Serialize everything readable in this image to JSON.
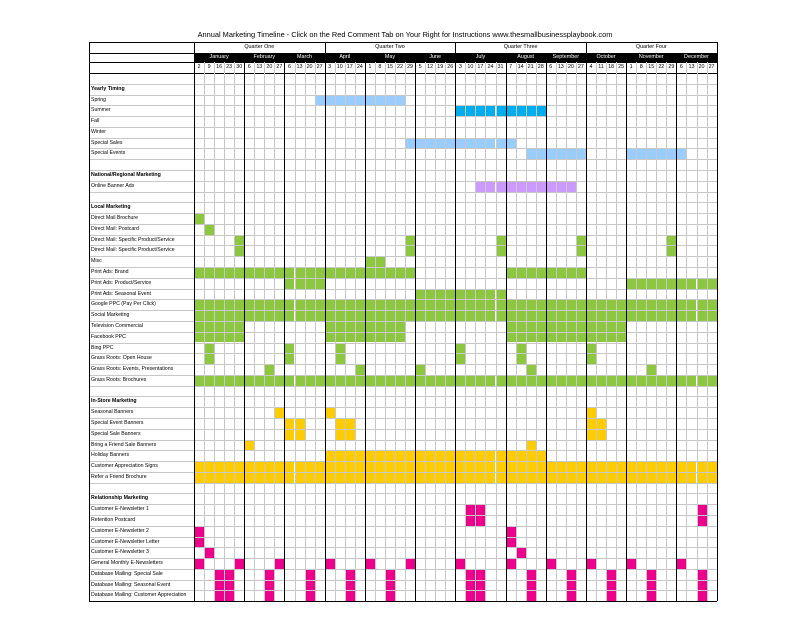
{
  "title": "Annual Marketing Timeline - Click on the Red Comment Tab on Your Right for Instructions      www.thesmallbusinessplaybook.com",
  "quarters": [
    "Quarter One",
    "Quarter Two",
    "Quarter Three",
    "Quarter Four"
  ],
  "months": [
    {
      "name": "January",
      "weeks": [
        "2",
        "9",
        "16",
        "23",
        "30"
      ]
    },
    {
      "name": "February",
      "weeks": [
        "6",
        "13",
        "20",
        "27"
      ]
    },
    {
      "name": "March",
      "weeks": [
        "6",
        "13",
        "20",
        "27"
      ]
    },
    {
      "name": "April",
      "weeks": [
        "3",
        "10",
        "17",
        "24"
      ]
    },
    {
      "name": "May",
      "weeks": [
        "1",
        "8",
        "15",
        "22",
        "29"
      ]
    },
    {
      "name": "June",
      "weeks": [
        "5",
        "12",
        "19",
        "26"
      ]
    },
    {
      "name": "July",
      "weeks": [
        "3",
        "10",
        "17",
        "24",
        "31"
      ]
    },
    {
      "name": "August",
      "weeks": [
        "7",
        "14",
        "21",
        "28"
      ]
    },
    {
      "name": "September",
      "weeks": [
        "6",
        "13",
        "20",
        "27"
      ]
    },
    {
      "name": "October",
      "weeks": [
        "4",
        "11",
        "18",
        "25"
      ]
    },
    {
      "name": "November",
      "weeks": [
        "1",
        "8",
        "15",
        "22",
        "29"
      ]
    },
    {
      "name": "December",
      "weeks": [
        "6",
        "13",
        "20",
        "27"
      ]
    }
  ],
  "colors": {
    "blue": "#99ccff",
    "cyan": "#00aeef",
    "purple": "#cc99ff",
    "green": "#8dc63f",
    "yellow": "#ffcc00",
    "pink": "#ec008c"
  },
  "rows": [
    {
      "label": "",
      "type": "blank"
    },
    {
      "label": "Yearly Timing",
      "type": "section"
    },
    {
      "label": "Spring",
      "color": "blue",
      "weeks": [
        12,
        13,
        14,
        15,
        16,
        17,
        18,
        19,
        20
      ]
    },
    {
      "label": "Summer",
      "color": "cyan",
      "weeks": [
        26,
        27,
        28,
        29,
        30,
        31,
        32,
        33,
        34
      ]
    },
    {
      "label": "Fall",
      "weeks": []
    },
    {
      "label": "Winter",
      "weeks": []
    },
    {
      "label": "Special Sales",
      "color": "blue",
      "weeks": [
        21,
        22,
        23,
        24,
        25,
        26,
        27,
        28,
        29,
        30,
        31
      ]
    },
    {
      "label": "Special Events",
      "color": "blue",
      "weeks": [
        33,
        34,
        35,
        36,
        37,
        38,
        43,
        44,
        45,
        46,
        47,
        48
      ]
    },
    {
      "label": "",
      "type": "blank"
    },
    {
      "label": "National/Regional Marketing",
      "type": "section"
    },
    {
      "label": "Online Banner Ads",
      "color": "purple",
      "weeks": [
        28,
        29,
        30,
        31,
        32,
        33,
        34,
        35,
        36,
        37
      ]
    },
    {
      "label": "",
      "type": "blank"
    },
    {
      "label": "Local Marketing",
      "type": "section"
    },
    {
      "label": "Direct Mail Brochure",
      "color": "green",
      "weeks": [
        0
      ]
    },
    {
      "label": "Direct Mail: Postcard",
      "color": "green",
      "weeks": [
        1
      ]
    },
    {
      "label": "Direct Mail: Specific Product/Service",
      "color": "green",
      "weeks": [
        4,
        21,
        30,
        38,
        47
      ]
    },
    {
      "label": "Direct Mail: Specific Product/Service",
      "color": "green",
      "weeks": [
        4,
        21,
        30,
        38,
        47
      ]
    },
    {
      "label": "Misc",
      "color": "green",
      "weeks": [
        17,
        18
      ]
    },
    {
      "label": "Print Ads: Brand",
      "color": "green",
      "weeks": [
        0,
        1,
        2,
        3,
        4,
        5,
        6,
        7,
        8,
        9,
        10,
        11,
        12,
        13,
        14,
        15,
        16,
        17,
        18,
        19,
        20,
        21,
        31,
        32,
        33,
        34,
        35,
        36,
        37,
        38
      ]
    },
    {
      "label": "Print Ads: Product/Service",
      "color": "green",
      "weeks": [
        9,
        10,
        11,
        12,
        43,
        44,
        45,
        46,
        47,
        48,
        49,
        50,
        51
      ]
    },
    {
      "label": "Print Ads: Seasonal Event",
      "color": "green",
      "weeks": [
        22,
        23,
        24,
        25,
        26,
        27,
        28,
        29,
        30
      ]
    },
    {
      "label": "Google PPC (Pay Per Click)",
      "color": "green",
      "weeks": [
        0,
        1,
        2,
        3,
        4,
        5,
        6,
        7,
        8,
        9,
        10,
        11,
        12,
        13,
        14,
        15,
        16,
        17,
        18,
        19,
        20,
        21,
        22,
        23,
        24,
        25,
        26,
        27,
        28,
        29,
        30,
        31,
        32,
        33,
        34,
        35,
        36,
        37,
        38,
        39,
        40,
        41,
        42,
        43,
        44,
        45,
        46,
        47,
        48,
        49,
        50,
        51
      ]
    },
    {
      "label": "Social Marketing",
      "color": "green",
      "weeks": [
        0,
        1,
        2,
        3,
        4,
        5,
        6,
        7,
        8,
        9,
        10,
        11,
        12,
        13,
        14,
        15,
        16,
        17,
        18,
        19,
        20,
        21,
        22,
        23,
        24,
        25,
        26,
        27,
        28,
        29,
        30,
        31,
        32,
        33,
        34,
        35,
        36,
        37,
        38,
        39,
        40,
        41,
        42,
        43,
        44,
        45,
        46,
        47,
        48,
        49,
        50,
        51
      ]
    },
    {
      "label": "Television Commercial",
      "color": "green",
      "weeks": [
        0,
        1,
        2,
        3,
        4,
        13,
        14,
        15,
        16,
        17,
        18,
        19,
        20,
        31,
        32,
        33,
        34,
        35,
        36,
        37,
        38,
        39,
        40,
        41,
        42
      ]
    },
    {
      "label": "Facebook PPC",
      "color": "green",
      "weeks": [
        0,
        1,
        2,
        3,
        4,
        13,
        14,
        15,
        16,
        17,
        18,
        19,
        20,
        31,
        32,
        33,
        34,
        35,
        36,
        37,
        38,
        39,
        40,
        41,
        42
      ]
    },
    {
      "label": "Bing PPC",
      "color": "green",
      "weeks": [
        1,
        9,
        14,
        26,
        32,
        39
      ]
    },
    {
      "label": "Grass Roots: Open House",
      "color": "green",
      "weeks": [
        1,
        9,
        14,
        26,
        32,
        39
      ]
    },
    {
      "label": "Grass Roots: Events, Presentations",
      "color": "green",
      "weeks": [
        7,
        16,
        22,
        33,
        45
      ]
    },
    {
      "label": "Grass Roots: Brochures",
      "color": "green",
      "weeks": [
        0,
        1,
        2,
        3,
        4,
        5,
        6,
        7,
        8,
        9,
        10,
        11,
        12,
        13,
        14,
        15,
        16,
        17,
        18,
        19,
        20,
        21,
        22,
        23,
        24,
        25,
        26,
        27,
        28,
        29,
        30,
        31,
        32,
        33,
        34,
        35,
        36,
        37,
        38,
        39,
        40,
        41,
        42,
        43,
        44,
        45,
        46,
        47,
        48,
        49,
        50,
        51
      ]
    },
    {
      "label": "",
      "type": "blank"
    },
    {
      "label": "In-Store Marketing",
      "type": "section"
    },
    {
      "label": "Seasonal Banners",
      "color": "yellow",
      "weeks": [
        8,
        13,
        39
      ]
    },
    {
      "label": "Special Event Banners",
      "color": "yellow",
      "weeks": [
        9,
        10,
        14,
        15,
        39,
        40
      ]
    },
    {
      "label": "Special Sale Banners",
      "color": "yellow",
      "weeks": [
        9,
        10,
        14,
        15,
        39,
        40
      ]
    },
    {
      "label": "Bring a Friend Sale Banners",
      "color": "yellow",
      "weeks": [
        5,
        33
      ]
    },
    {
      "label": "Holiday Banners",
      "color": "yellow",
      "weeks": [
        13,
        14,
        15,
        16,
        17,
        18,
        19,
        20,
        21,
        22,
        23,
        24,
        25,
        26,
        27,
        28,
        29,
        30,
        31,
        32,
        33,
        34
      ]
    },
    {
      "label": "Customer Appreciation Signs",
      "color": "yellow",
      "weeks": [
        0,
        1,
        2,
        3,
        4,
        5,
        6,
        7,
        8,
        9,
        10,
        11,
        12,
        13,
        14,
        15,
        16,
        17,
        18,
        19,
        20,
        21,
        22,
        23,
        24,
        25,
        26,
        27,
        28,
        29,
        30,
        31,
        32,
        33,
        34,
        35,
        36,
        37,
        38,
        39,
        40,
        41,
        42,
        43,
        44,
        45,
        46,
        47,
        48,
        49,
        50,
        51
      ]
    },
    {
      "label": "Refer a Friend Brochure",
      "color": "yellow",
      "weeks": [
        0,
        1,
        2,
        3,
        4,
        5,
        6,
        7,
        8,
        9,
        10,
        11,
        12,
        13,
        14,
        15,
        16,
        17,
        18,
        19,
        20,
        21,
        22,
        23,
        24,
        25,
        26,
        27,
        28,
        29,
        30,
        31,
        32,
        33,
        34,
        35,
        36,
        37,
        38,
        39,
        40,
        41,
        42,
        43,
        44,
        45,
        46,
        47,
        48,
        49,
        50,
        51
      ]
    },
    {
      "label": "",
      "type": "blank"
    },
    {
      "label": "Relationship Marketing",
      "type": "section"
    },
    {
      "label": "Customer E-Newsletter 1",
      "color": "pink",
      "weeks": [
        27,
        28,
        50
      ]
    },
    {
      "label": "Retention Postcard",
      "color": "pink",
      "weeks": [
        27,
        28,
        50
      ]
    },
    {
      "label": "Customer E-Newsletter 2",
      "color": "pink",
      "weeks": [
        0,
        31
      ]
    },
    {
      "label": "Customer E-Newsletter Letter",
      "color": "pink",
      "weeks": [
        0,
        31
      ]
    },
    {
      "label": "Customer E-Newsletter 3",
      "color": "pink",
      "weeks": [
        1,
        32
      ]
    },
    {
      "label": "General  Monthly E-Newsletters",
      "color": "pink",
      "weeks": [
        0,
        4,
        8,
        13,
        17,
        21,
        26,
        31,
        35,
        39,
        43,
        48
      ]
    },
    {
      "label": "Database Mailing: Special Sale",
      "color": "pink",
      "weeks": [
        2,
        3,
        7,
        11,
        15,
        19,
        27,
        28,
        33,
        37,
        41,
        45,
        50
      ]
    },
    {
      "label": "Database Mailing: Seasonal Event",
      "color": "pink",
      "weeks": [
        2,
        3,
        7,
        11,
        15,
        19,
        27,
        28,
        33,
        37,
        41,
        45,
        50
      ]
    },
    {
      "label": "Database Mailing: Customer Appreciation",
      "color": "pink",
      "weeks": [
        2,
        3,
        7,
        11,
        15,
        19,
        27,
        28,
        33,
        37,
        41,
        45,
        50
      ]
    }
  ]
}
